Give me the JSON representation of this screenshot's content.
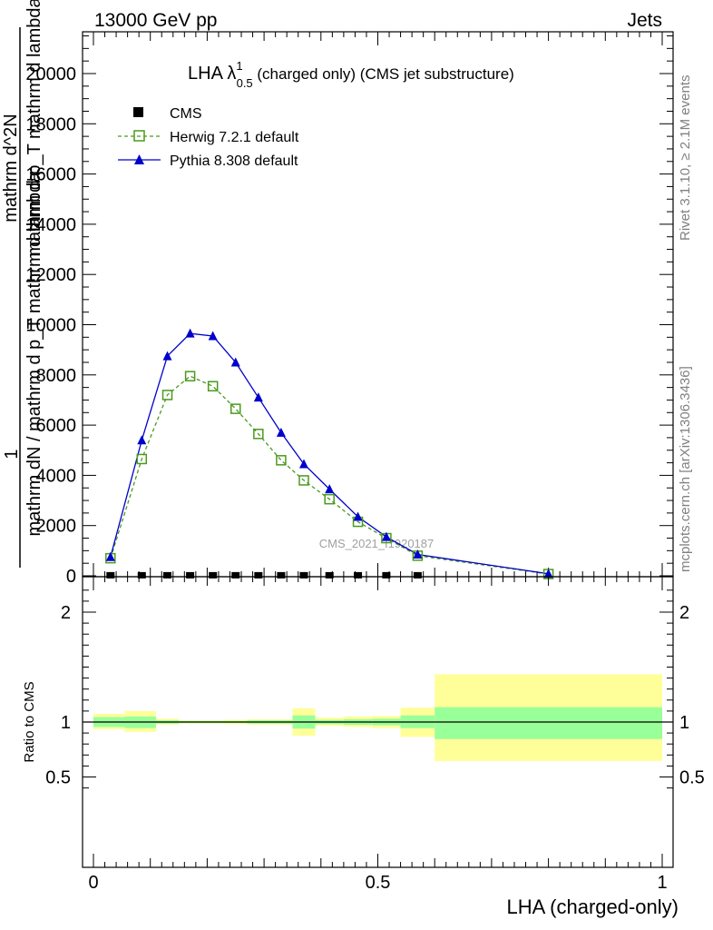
{
  "header": {
    "energy_label": "13000 GeV pp",
    "category_label": "Jets"
  },
  "side_labels": {
    "rivet": "Rivet 3.1.10, ≥ 2.1M events",
    "mcplots": "mcplots.cern.ch [arXiv:1306.3436]"
  },
  "plot_title": {
    "main": "LHA λ",
    "sup": "1",
    "sub": "0.5",
    "rest": " (charged only) (CMS jet substructure)"
  },
  "watermark": "CMS_2021_I1920187",
  "y_axis_label_main": {
    "line_one": "1",
    "line_two": "mathrm dN / mathrm d p_T mathrm d lambda",
    "line_three": "mathrm d^2N",
    "line_four": "mathrm d p_T mathrm d lambda"
  },
  "legend": [
    {
      "key": "cms",
      "label": "CMS"
    },
    {
      "key": "herwig",
      "label": "Herwig 7.2.1 default"
    },
    {
      "key": "pythia",
      "label": "Pythia 8.308 default"
    }
  ],
  "ratio_panel": {
    "ylabel": "Ratio to CMS"
  },
  "x_axis": {
    "label": "LHA (charged-only)"
  },
  "colors": {
    "herwig": "#4a9a1e",
    "pythia": "#0000cc",
    "band_inner": "#99ff99",
    "band_outer": "#ffff99",
    "data": "#000000"
  },
  "chart_data": {
    "type": "line",
    "xlabel": "LHA (charged-only)",
    "xlim": [
      0,
      1
    ],
    "main_ylim": [
      0,
      21500
    ],
    "main_yticks": [
      0,
      2000,
      4000,
      6000,
      8000,
      10000,
      12000,
      14000,
      16000,
      18000,
      20000
    ],
    "main_ytick_labels": [
      "0",
      "2000",
      "4000",
      "6000",
      "8000",
      "10000",
      "12000",
      "14000",
      "16000",
      "18000",
      "20000"
    ],
    "xticks": [
      0,
      0.5,
      1
    ],
    "xtick_labels": [
      "0",
      "0.5",
      "1"
    ],
    "ratio_ylim": [
      0.38,
      2.35
    ],
    "ratio_yticks": [
      0.5,
      1,
      2
    ],
    "ratio_ytick_labels": [
      "0.5",
      "1",
      "2"
    ],
    "x": [
      0.03,
      0.085,
      0.13,
      0.17,
      0.21,
      0.25,
      0.29,
      0.33,
      0.37,
      0.415,
      0.465,
      0.515,
      0.57,
      0.8
    ],
    "series": [
      {
        "name": "CMS",
        "key": "cms",
        "values": [
          40,
          40,
          40,
          40,
          40,
          40,
          40,
          40,
          40,
          40,
          40,
          40,
          40,
          0
        ]
      },
      {
        "name": "Herwig 7.2.1 default",
        "key": "herwig",
        "values": [
          700,
          4650,
          7200,
          7950,
          7550,
          6650,
          5650,
          4600,
          3800,
          3050,
          2150,
          1500,
          800,
          70
        ]
      },
      {
        "name": "Pythia 8.308 default",
        "key": "pythia",
        "values": [
          750,
          5400,
          8750,
          9650,
          9550,
          8500,
          7100,
          5700,
          4450,
          3450,
          2350,
          1550,
          850,
          80
        ]
      }
    ],
    "ratio_bands": [
      {
        "xlo": 0.0,
        "xhi": 0.055,
        "inner": [
          0.955,
          1.045
        ],
        "outer": [
          0.935,
          1.075
        ]
      },
      {
        "xlo": 0.055,
        "xhi": 0.11,
        "inner": [
          0.945,
          1.05
        ],
        "outer": [
          0.91,
          1.1
        ]
      },
      {
        "xlo": 0.11,
        "xhi": 0.15,
        "inner": [
          0.985,
          1.015
        ],
        "outer": [
          0.975,
          1.03
        ]
      },
      {
        "xlo": 0.15,
        "xhi": 0.19,
        "inner": [
          0.99,
          1.01
        ],
        "outer": [
          0.985,
          1.015
        ]
      },
      {
        "xlo": 0.19,
        "xhi": 0.23,
        "inner": [
          0.99,
          1.01
        ],
        "outer": [
          0.985,
          1.015
        ]
      },
      {
        "xlo": 0.23,
        "xhi": 0.27,
        "inner": [
          0.99,
          1.01
        ],
        "outer": [
          0.98,
          1.02
        ]
      },
      {
        "xlo": 0.27,
        "xhi": 0.31,
        "inner": [
          0.985,
          1.015
        ],
        "outer": [
          0.975,
          1.025
        ]
      },
      {
        "xlo": 0.31,
        "xhi": 0.35,
        "inner": [
          0.985,
          1.015
        ],
        "outer": [
          0.975,
          1.025
        ]
      },
      {
        "xlo": 0.35,
        "xhi": 0.39,
        "inner": [
          0.94,
          1.06
        ],
        "outer": [
          0.875,
          1.125
        ]
      },
      {
        "xlo": 0.39,
        "xhi": 0.44,
        "inner": [
          0.98,
          1.02
        ],
        "outer": [
          0.965,
          1.04
        ]
      },
      {
        "xlo": 0.44,
        "xhi": 0.49,
        "inner": [
          0.975,
          1.025
        ],
        "outer": [
          0.955,
          1.05
        ]
      },
      {
        "xlo": 0.49,
        "xhi": 0.54,
        "inner": [
          0.97,
          1.03
        ],
        "outer": [
          0.945,
          1.055
        ]
      },
      {
        "xlo": 0.54,
        "xhi": 0.6,
        "inner": [
          0.945,
          1.06
        ],
        "outer": [
          0.865,
          1.13
        ]
      },
      {
        "xlo": 0.6,
        "xhi": 1.0,
        "inner": [
          0.845,
          1.135
        ],
        "outer": [
          0.645,
          1.435
        ]
      }
    ]
  }
}
